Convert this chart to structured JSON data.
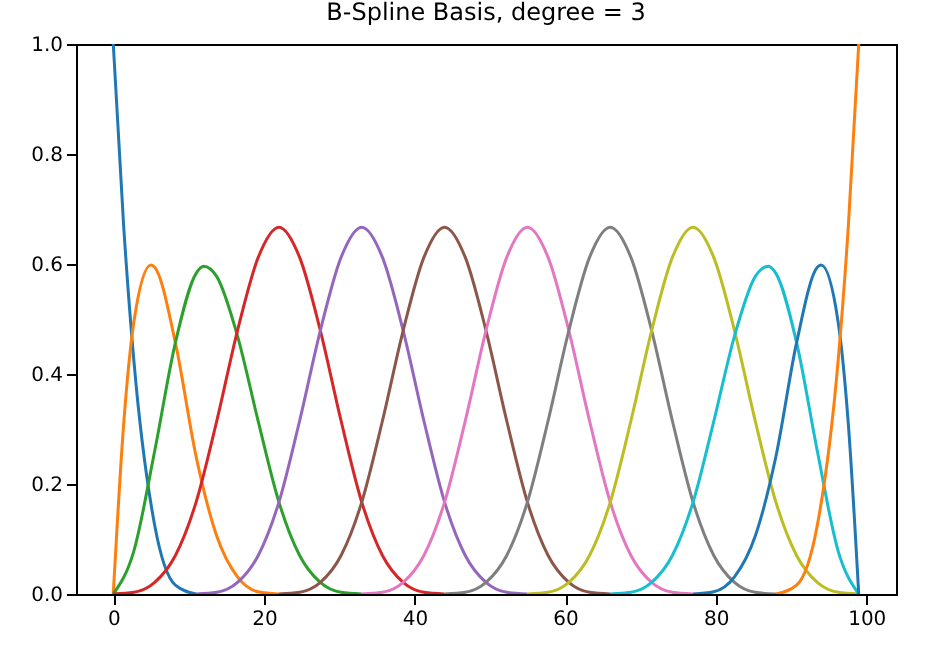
{
  "chart_data": {
    "type": "line",
    "title": "B-Spline Basis, degree = 3",
    "xlim": [
      -4.95,
      103.95
    ],
    "xticks": [
      0,
      20,
      40,
      60,
      80,
      100
    ],
    "ylim": [
      0,
      1
    ],
    "yticks": [
      {
        "value": 0,
        "label": "0.0"
      },
      {
        "value": 0.2,
        "label": "0.2"
      },
      {
        "value": 0.4,
        "label": "0.4"
      },
      {
        "value": 0.6,
        "label": "0.6"
      },
      {
        "value": 0.8,
        "label": "0.8"
      },
      {
        "value": 1,
        "label": "1.0"
      }
    ],
    "grid": false,
    "marker": "none",
    "line_style": "solid",
    "series": [
      {
        "color": "#1f77b4",
        "x": [
          0,
          1.375,
          2.75,
          5.5,
          8.25,
          11
        ],
        "values": [
          1,
          0.67,
          0.422,
          0.125,
          0.016,
          0
        ]
      },
      {
        "color": "#ff7f0e",
        "x": [
          0,
          1.375,
          2.75,
          5,
          5.5,
          8.25,
          11,
          13.75,
          16.5,
          19.25,
          22
        ],
        "values": [
          0,
          0.308,
          0.496,
          0.598,
          0.594,
          0.457,
          0.25,
          0.105,
          0.031,
          0.004,
          0
        ]
      },
      {
        "color": "#2ca02c",
        "x": [
          0,
          2.75,
          5.5,
          8.25,
          11,
          12,
          13.75,
          16.5,
          19.25,
          22,
          24.75,
          27.5,
          30.25,
          33
        ],
        "values": [
          0,
          0.079,
          0.26,
          0.457,
          0.583,
          0.596,
          0.577,
          0.469,
          0.314,
          0.167,
          0.07,
          0.021,
          0.003,
          0
        ]
      },
      {
        "color": "#d62728",
        "x": [
          0,
          2.75,
          5.5,
          8.25,
          11,
          13.75,
          16.5,
          19.25,
          22,
          24.75,
          27.5,
          30.25,
          33,
          35.75,
          38.5,
          41.25,
          44
        ],
        "values": [
          0,
          0.003,
          0.021,
          0.07,
          0.167,
          0.315,
          0.479,
          0.612,
          0.667,
          0.612,
          0.479,
          0.315,
          0.167,
          0.07,
          0.021,
          0.003,
          0
        ]
      },
      {
        "color": "#9467bd",
        "x": [
          11,
          13.75,
          16.5,
          19.25,
          22,
          24.75,
          27.5,
          30.25,
          33,
          35.75,
          38.5,
          41.25,
          44,
          46.75,
          49.5,
          52.25,
          55
        ],
        "values": [
          0,
          0.003,
          0.021,
          0.07,
          0.167,
          0.315,
          0.479,
          0.612,
          0.667,
          0.612,
          0.479,
          0.315,
          0.167,
          0.07,
          0.021,
          0.003,
          0
        ]
      },
      {
        "color": "#8c564b",
        "x": [
          22,
          24.75,
          27.5,
          30.25,
          33,
          35.75,
          38.5,
          41.25,
          44,
          46.75,
          49.5,
          52.25,
          55,
          57.75,
          60.5,
          63.25,
          66
        ],
        "values": [
          0,
          0.003,
          0.021,
          0.07,
          0.167,
          0.315,
          0.479,
          0.612,
          0.667,
          0.612,
          0.479,
          0.315,
          0.167,
          0.07,
          0.021,
          0.003,
          0
        ]
      },
      {
        "color": "#e377c2",
        "x": [
          33,
          35.75,
          38.5,
          41.25,
          44,
          46.75,
          49.5,
          52.25,
          55,
          57.75,
          60.5,
          63.25,
          66,
          68.75,
          71.5,
          74.25,
          77
        ],
        "values": [
          0,
          0.003,
          0.021,
          0.07,
          0.167,
          0.315,
          0.479,
          0.612,
          0.667,
          0.612,
          0.479,
          0.315,
          0.167,
          0.07,
          0.021,
          0.003,
          0
        ]
      },
      {
        "color": "#7f7f7f",
        "x": [
          44,
          46.75,
          49.5,
          52.25,
          55,
          57.75,
          60.5,
          63.25,
          66,
          68.75,
          71.5,
          74.25,
          77,
          79.75,
          82.5,
          85.25,
          88
        ],
        "values": [
          0,
          0.003,
          0.021,
          0.07,
          0.167,
          0.315,
          0.479,
          0.612,
          0.667,
          0.612,
          0.479,
          0.315,
          0.167,
          0.07,
          0.021,
          0.003,
          0
        ]
      },
      {
        "color": "#bcbd22",
        "x": [
          55,
          57.75,
          60.5,
          63.25,
          66,
          68.75,
          71.5,
          74.25,
          77,
          79.75,
          82.5,
          85.25,
          88,
          90.75,
          93.5,
          96.25,
          99
        ],
        "values": [
          0,
          0.003,
          0.021,
          0.07,
          0.167,
          0.315,
          0.479,
          0.612,
          0.667,
          0.612,
          0.479,
          0.315,
          0.167,
          0.07,
          0.021,
          0.003,
          0
        ]
      },
      {
        "color": "#17becf",
        "x": [
          66,
          68.75,
          71.5,
          74.25,
          77,
          79.75,
          82.5,
          85.25,
          87,
          88,
          90.75,
          93.5,
          96.25,
          99
        ],
        "values": [
          0,
          0.003,
          0.021,
          0.07,
          0.167,
          0.314,
          0.469,
          0.577,
          0.596,
          0.583,
          0.457,
          0.26,
          0.079,
          0
        ]
      },
      {
        "color": "#1f77b4",
        "x": [
          77,
          79.75,
          82.5,
          85.25,
          88,
          90.75,
          93.5,
          94,
          96.25,
          97.625,
          99
        ],
        "values": [
          0,
          0.004,
          0.031,
          0.105,
          0.25,
          0.457,
          0.594,
          0.598,
          0.496,
          0.308,
          0
        ]
      },
      {
        "color": "#ff7f0e",
        "x": [
          88,
          90.75,
          93.5,
          96.25,
          97.625,
          99
        ],
        "values": [
          0,
          0.016,
          0.125,
          0.422,
          0.67,
          1
        ]
      }
    ]
  }
}
